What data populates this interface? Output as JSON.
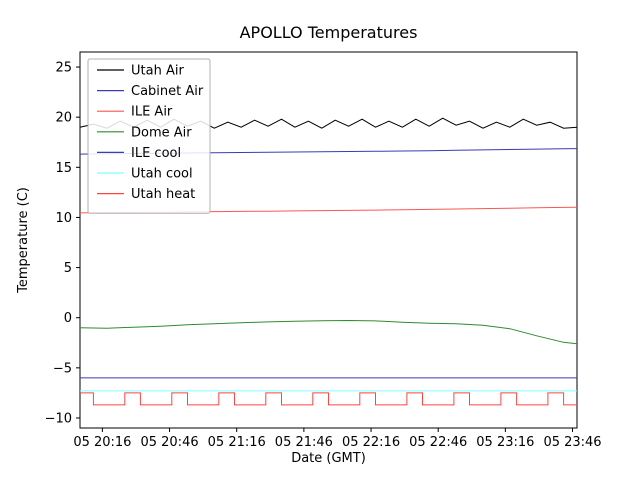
{
  "chart_data": {
    "type": "line",
    "title": "APOLLO Temperatures",
    "xlabel": "Date (GMT)",
    "ylabel": "Temperature (C)",
    "xlim": [
      0,
      222
    ],
    "ylim": [
      -11,
      26.5
    ],
    "grid": false,
    "legend_position": "upper left",
    "xticks": {
      "positions": [
        10,
        40,
        70,
        100,
        130,
        160,
        190,
        220
      ],
      "labels": [
        "05 20:16",
        "05 20:46",
        "05 21:16",
        "05 21:46",
        "05 22:16",
        "05 22:46",
        "05 23:16",
        "05 23:46"
      ]
    },
    "yticks": {
      "positions": [
        -10,
        -5,
        0,
        5,
        10,
        15,
        20,
        25
      ],
      "labels": [
        "−10",
        "−5",
        "0",
        "5",
        "10",
        "15",
        "20",
        "25"
      ]
    },
    "series": [
      {
        "name": "Utah Air",
        "color": "#000000",
        "points": [
          [
            0,
            19.0
          ],
          [
            6,
            19.3
          ],
          [
            12,
            18.9
          ],
          [
            18,
            19.6
          ],
          [
            24,
            19.0
          ],
          [
            30,
            19.7
          ],
          [
            36,
            19.0
          ],
          [
            42,
            19.8
          ],
          [
            48,
            19.1
          ],
          [
            54,
            19.6
          ],
          [
            60,
            18.9
          ],
          [
            66,
            19.5
          ],
          [
            72,
            19.0
          ],
          [
            78,
            19.7
          ],
          [
            84,
            19.1
          ],
          [
            90,
            19.8
          ],
          [
            96,
            19.0
          ],
          [
            102,
            19.6
          ],
          [
            108,
            18.9
          ],
          [
            114,
            19.7
          ],
          [
            120,
            19.1
          ],
          [
            126,
            19.8
          ],
          [
            132,
            19.0
          ],
          [
            138,
            19.6
          ],
          [
            144,
            19.0
          ],
          [
            150,
            19.8
          ],
          [
            156,
            19.1
          ],
          [
            162,
            19.9
          ],
          [
            168,
            19.2
          ],
          [
            174,
            19.6
          ],
          [
            180,
            18.9
          ],
          [
            186,
            19.5
          ],
          [
            192,
            19.0
          ],
          [
            198,
            19.8
          ],
          [
            204,
            19.2
          ],
          [
            210,
            19.5
          ],
          [
            216,
            18.9
          ],
          [
            222,
            19.0
          ]
        ]
      },
      {
        "name": "Cabinet Air",
        "color": "#3b3bb2",
        "points": [
          [
            0,
            16.32
          ],
          [
            12,
            16.35
          ],
          [
            24,
            16.38
          ],
          [
            36,
            16.4
          ],
          [
            48,
            16.43
          ],
          [
            60,
            16.45
          ],
          [
            72,
            16.48
          ],
          [
            84,
            16.5
          ],
          [
            96,
            16.53
          ],
          [
            108,
            16.55
          ],
          [
            120,
            16.58
          ],
          [
            132,
            16.6
          ],
          [
            144,
            16.63
          ],
          [
            156,
            16.66
          ],
          [
            168,
            16.7
          ],
          [
            180,
            16.74
          ],
          [
            192,
            16.78
          ],
          [
            204,
            16.82
          ],
          [
            216,
            16.86
          ],
          [
            222,
            16.87
          ]
        ]
      },
      {
        "name": "ILE Air",
        "color": "#ff5555",
        "points": [
          [
            0,
            10.45
          ],
          [
            12,
            10.48
          ],
          [
            24,
            10.5
          ],
          [
            36,
            10.52
          ],
          [
            48,
            10.55
          ],
          [
            60,
            10.58
          ],
          [
            72,
            10.6
          ],
          [
            84,
            10.62
          ],
          [
            96,
            10.65
          ],
          [
            108,
            10.68
          ],
          [
            120,
            10.7
          ],
          [
            132,
            10.73
          ],
          [
            144,
            10.76
          ],
          [
            156,
            10.8
          ],
          [
            168,
            10.84
          ],
          [
            180,
            10.88
          ],
          [
            192,
            10.92
          ],
          [
            204,
            10.96
          ],
          [
            216,
            11.0
          ],
          [
            222,
            11.02
          ]
        ]
      },
      {
        "name": "Dome Air",
        "color": "#2e8b2e",
        "points": [
          [
            0,
            -1.0
          ],
          [
            12,
            -1.05
          ],
          [
            24,
            -0.95
          ],
          [
            36,
            -0.85
          ],
          [
            48,
            -0.7
          ],
          [
            60,
            -0.6
          ],
          [
            72,
            -0.5
          ],
          [
            84,
            -0.42
          ],
          [
            96,
            -0.35
          ],
          [
            108,
            -0.3
          ],
          [
            120,
            -0.28
          ],
          [
            132,
            -0.32
          ],
          [
            144,
            -0.45
          ],
          [
            156,
            -0.55
          ],
          [
            168,
            -0.6
          ],
          [
            180,
            -0.75
          ],
          [
            192,
            -1.1
          ],
          [
            204,
            -1.8
          ],
          [
            216,
            -2.45
          ],
          [
            222,
            -2.6
          ]
        ]
      },
      {
        "name": "ILE cool",
        "color": "#3b3bb2",
        "points": [
          [
            0,
            -6.0
          ],
          [
            222,
            -6.0
          ]
        ]
      },
      {
        "name": "Utah cool",
        "color": "#7dffff",
        "points": [
          [
            0,
            -7.3
          ],
          [
            222,
            -7.3
          ]
        ]
      },
      {
        "name": "Utah heat",
        "color": "#ff4444",
        "points": [
          [
            0,
            -7.5
          ],
          [
            6,
            -7.5
          ],
          [
            6,
            -8.7
          ],
          [
            20,
            -8.7
          ],
          [
            20,
            -7.5
          ],
          [
            27,
            -7.5
          ],
          [
            27,
            -8.7
          ],
          [
            41,
            -8.7
          ],
          [
            41,
            -7.5
          ],
          [
            48,
            -7.5
          ],
          [
            48,
            -8.7
          ],
          [
            62,
            -8.7
          ],
          [
            62,
            -7.5
          ],
          [
            69,
            -7.5
          ],
          [
            69,
            -8.7
          ],
          [
            83,
            -8.7
          ],
          [
            83,
            -7.5
          ],
          [
            90,
            -7.5
          ],
          [
            90,
            -8.7
          ],
          [
            104,
            -8.7
          ],
          [
            104,
            -7.5
          ],
          [
            111,
            -7.5
          ],
          [
            111,
            -8.7
          ],
          [
            125,
            -8.7
          ],
          [
            125,
            -7.5
          ],
          [
            132,
            -7.5
          ],
          [
            132,
            -8.7
          ],
          [
            146,
            -8.7
          ],
          [
            146,
            -7.5
          ],
          [
            153,
            -7.5
          ],
          [
            153,
            -8.7
          ],
          [
            167,
            -8.7
          ],
          [
            167,
            -7.5
          ],
          [
            174,
            -7.5
          ],
          [
            174,
            -8.7
          ],
          [
            188,
            -8.7
          ],
          [
            188,
            -7.5
          ],
          [
            195,
            -7.5
          ],
          [
            195,
            -8.7
          ],
          [
            209,
            -8.7
          ],
          [
            209,
            -7.5
          ],
          [
            216,
            -7.5
          ],
          [
            216,
            -8.7
          ],
          [
            222,
            -8.7
          ]
        ]
      }
    ]
  }
}
